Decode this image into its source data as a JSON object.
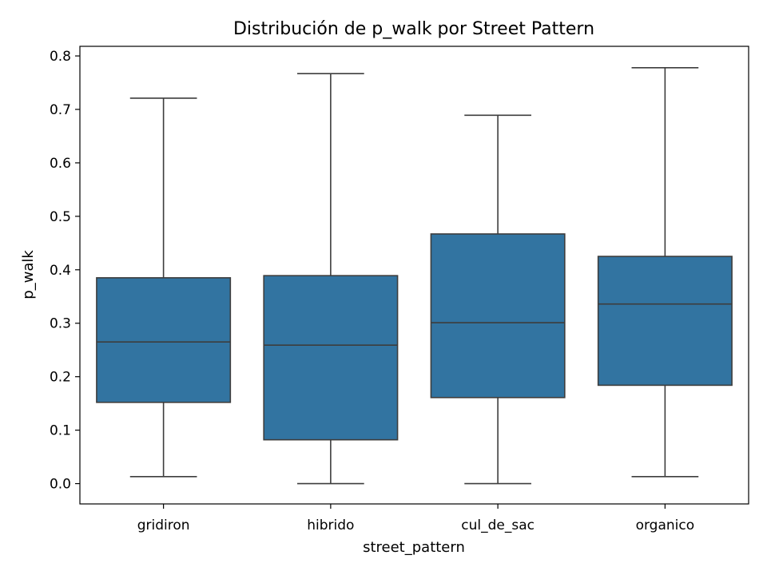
{
  "chart_data": {
    "type": "box",
    "title": "Distribución de p_walk por Street Pattern",
    "xlabel": "street_pattern",
    "ylabel": "p_walk",
    "ylim": [
      -0.038,
      0.818
    ],
    "yticks": [
      "0.0",
      "0.1",
      "0.2",
      "0.3",
      "0.4",
      "0.5",
      "0.6",
      "0.7",
      "0.8"
    ],
    "ytick_values": [
      0.0,
      0.1,
      0.2,
      0.3,
      0.4,
      0.5,
      0.6,
      0.7,
      0.8
    ],
    "grid": false,
    "box_color": "#3274a1",
    "line_color": "#3d3d3d",
    "categories": [
      "gridiron",
      "hibrido",
      "cul_de_sac",
      "organico"
    ],
    "boxes": [
      {
        "category": "gridiron",
        "whislo": 0.013,
        "q1": 0.152,
        "med": 0.265,
        "q3": 0.385,
        "whishi": 0.721
      },
      {
        "category": "hibrido",
        "whislo": 0.0,
        "q1": 0.082,
        "med": 0.259,
        "q3": 0.389,
        "whishi": 0.767
      },
      {
        "category": "cul_de_sac",
        "whislo": 0.0,
        "q1": 0.161,
        "med": 0.301,
        "q3": 0.467,
        "whishi": 0.689
      },
      {
        "category": "organico",
        "whislo": 0.013,
        "q1": 0.184,
        "med": 0.336,
        "q3": 0.425,
        "whishi": 0.778
      }
    ]
  }
}
